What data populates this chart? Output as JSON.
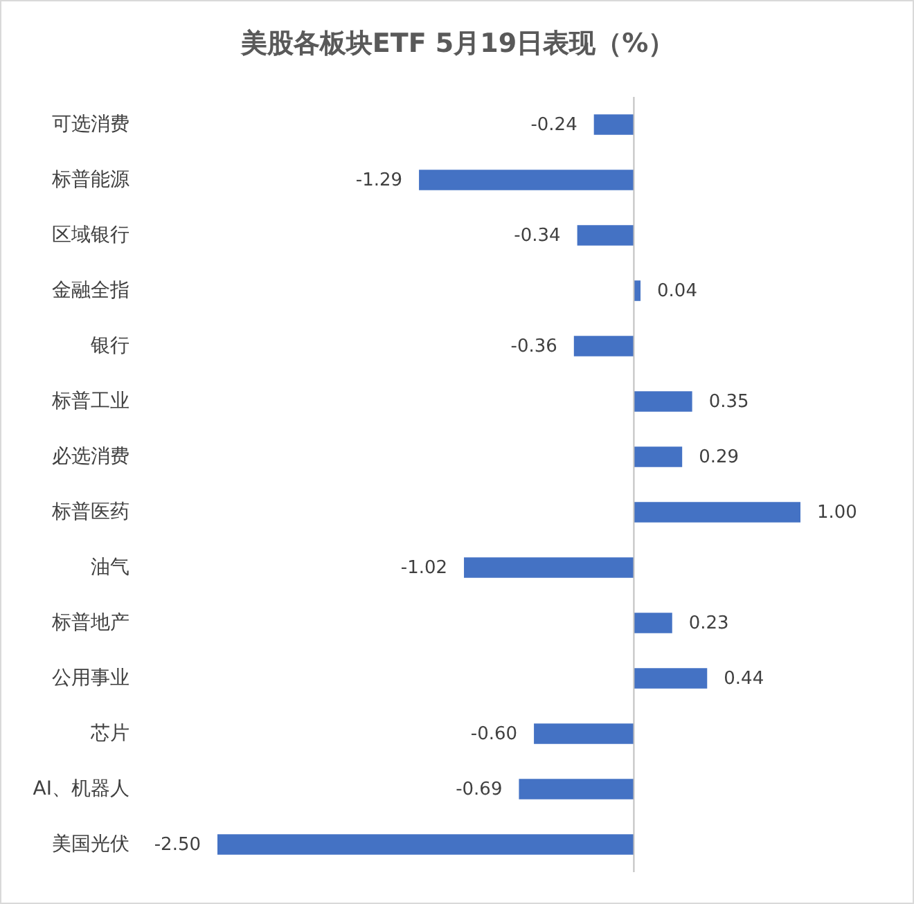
{
  "chart_data": {
    "type": "bar",
    "orientation": "horizontal",
    "title": "美股各板块ETF  5月19日表现（%）",
    "categories": [
      "可选消费",
      "标普能源",
      "区域银行",
      "金融全指",
      "银行",
      "标普工业",
      "必选消费",
      "标普医药",
      "油气",
      "标普地产",
      "公用事业",
      "芯片",
      "AI、机器人",
      "美国光伏"
    ],
    "values": [
      -0.24,
      -1.29,
      -0.34,
      0.04,
      -0.36,
      0.35,
      0.29,
      1.0,
      -1.02,
      0.23,
      0.44,
      -0.6,
      -0.69,
      -2.5
    ],
    "value_labels": [
      "-0.24",
      "-1.29",
      "-0.34",
      "0.04",
      "-0.36",
      "0.35",
      "0.29",
      "1.00",
      "-1.02",
      "0.23",
      "0.44",
      "-0.60",
      "-0.69",
      "-2.50"
    ],
    "color": "#4472c4"
  }
}
